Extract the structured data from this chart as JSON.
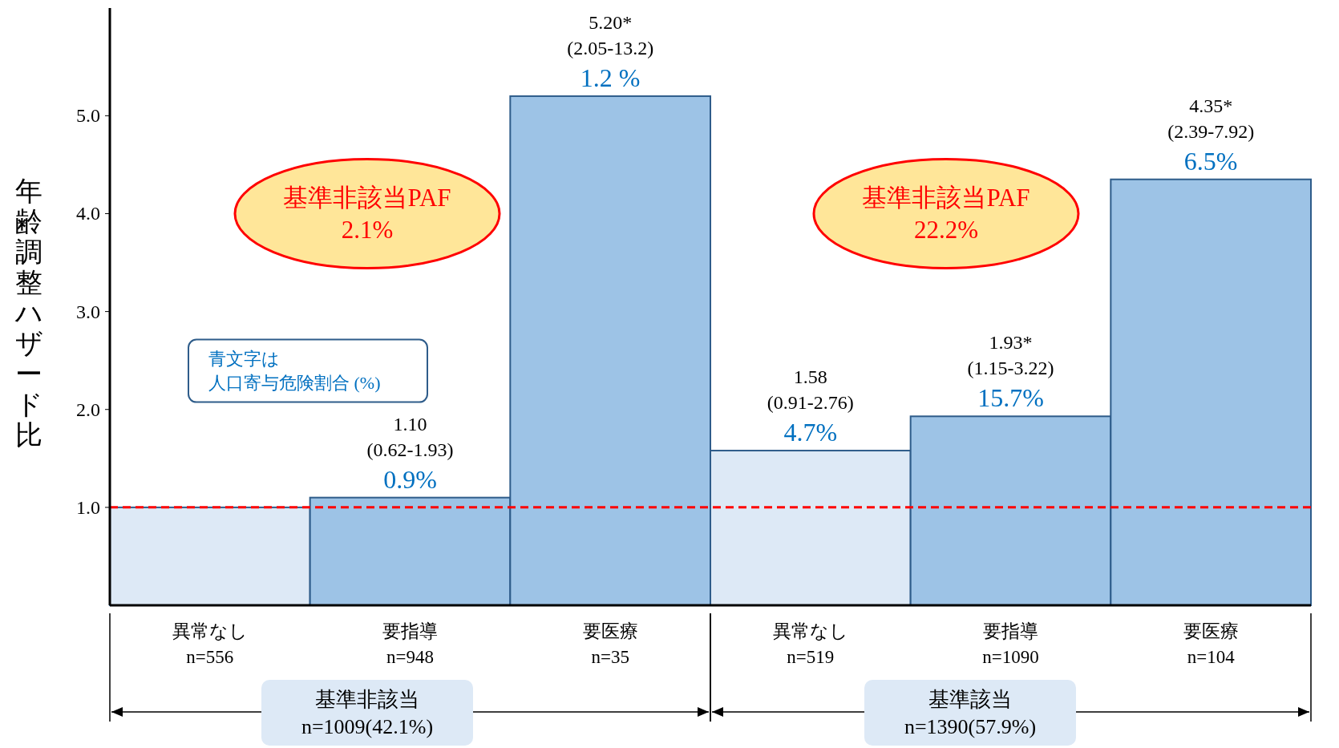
{
  "chart_data": {
    "type": "bar",
    "ylabel": "年齢調整ハザード比",
    "categories": [
      "異常なし\nn=556",
      "要指導\nn=948",
      "要医療\nn=35",
      "異常なし\nn=519",
      "要指導\nn=1090",
      "要医療\nn=104"
    ],
    "values": [
      1.0,
      1.1,
      5.2,
      1.58,
      1.93,
      4.35
    ],
    "colors": [
      "#dde9f6",
      "#9dc3e6",
      "#9dc3e6",
      "#dde9f6",
      "#9dc3e6",
      "#9dc3e6"
    ],
    "value_labels": [
      null,
      "1.10\n(0.62-1.93)\n0.9%",
      "5.20*\n(2.05-13.2)\n1.2 %",
      "1.58\n(0.91-2.76)\n4.7%",
      "1.93*\n(1.15-3.22)\n15.7%",
      "4.35*\n(2.39-7.92)\n6.5%"
    ],
    "ylim": [
      0,
      6.1
    ],
    "yticks": [
      {
        "value": 1,
        "label": "1.0"
      },
      {
        "value": 2,
        "label": "2.0"
      },
      {
        "value": 3,
        "label": "3.0"
      },
      {
        "value": 4,
        "label": "4.0"
      },
      {
        "value": 5,
        "label": "5.0"
      }
    ],
    "ref_lines": [
      {
        "axis": "y",
        "value": 1,
        "color": "#ff0000",
        "line_style": "dashed"
      }
    ],
    "annotations": [
      "基準非該当PAF\n2.1%",
      "基準非該当PAF\n22.2%",
      "青文字は",
      "人口寄与危険割合 (%)",
      "基準非該当\nn=1009(42.1%)",
      "基準該当\nn=1390(57.9%)"
    ],
    "grid": false
  }
}
